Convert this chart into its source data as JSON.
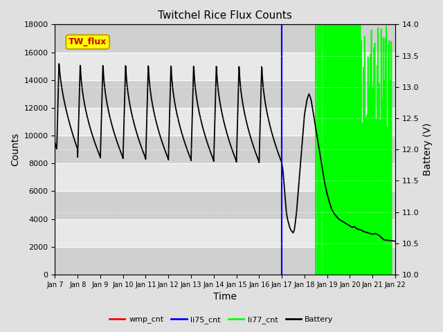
{
  "title": "Twitchel Rice Flux Counts",
  "xlabel": "Time",
  "ylabel_left": "Counts",
  "ylabel_right": "Battery (V)",
  "xlim": [
    0,
    15
  ],
  "ylim_left": [
    0,
    18000
  ],
  "ylim_right": [
    10.0,
    14.0
  ],
  "xtick_labels": [
    "Jan 7",
    "Jan 8",
    "Jan 9",
    "Jan 10",
    "Jan 11",
    "Jan 12",
    "Jan 13",
    "Jan 14",
    "Jan 15",
    "Jan 16",
    "Jan 17",
    "Jan 18",
    "Jan 19",
    "Jan 20",
    "Jan 21",
    "Jan 22"
  ],
  "ytick_left": [
    0,
    2000,
    4000,
    6000,
    8000,
    10000,
    12000,
    14000,
    16000,
    18000
  ],
  "ytick_right": [
    10.0,
    10.5,
    11.0,
    11.5,
    12.0,
    12.5,
    13.0,
    13.5,
    14.0
  ],
  "bg_color": "#e0e0e0",
  "plot_bg_light": "#e8e8e8",
  "plot_bg_dark": "#d0d0d0",
  "wmp_color": "#ff0000",
  "li75_color": "#0000ff",
  "li77_color": "#00ff00",
  "battery_color": "#000000",
  "legend_label": "TW_flux",
  "legend_box_color": "#ffff00",
  "legend_box_edge": "#c8a000",
  "grid_color": "#ffffff",
  "figsize": [
    6.4,
    4.8
  ],
  "dpi": 100
}
